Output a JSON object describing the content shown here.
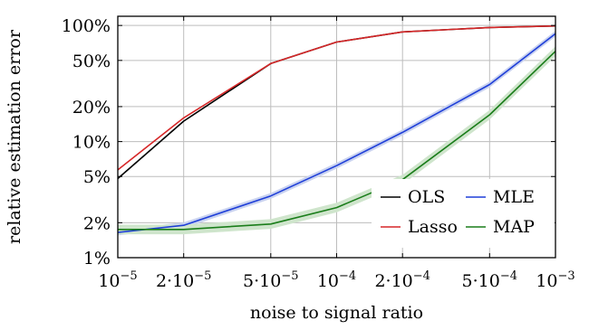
{
  "chart_data": {
    "type": "line",
    "title": "",
    "xlabel": "noise to signal ratio",
    "ylabel": "relative estimation error",
    "xscale": "log",
    "yscale": "log",
    "xlim": [
      1e-05,
      0.001
    ],
    "ylim": [
      0.01,
      1.2
    ],
    "grid": true,
    "legend_position": "bottom-right",
    "x": [
      1e-05,
      2e-05,
      5e-05,
      0.0001,
      0.0002,
      0.0005,
      0.001
    ],
    "x_ticks": [
      {
        "value": 1e-05,
        "base": "10",
        "exp": "−5"
      },
      {
        "value": 2e-05,
        "base": "2·10",
        "exp": "−5"
      },
      {
        "value": 5e-05,
        "base": "5·10",
        "exp": "−5"
      },
      {
        "value": 0.0001,
        "base": "10",
        "exp": "−4"
      },
      {
        "value": 0.0002,
        "base": "2·10",
        "exp": "−4"
      },
      {
        "value": 0.0005,
        "base": "5·10",
        "exp": "−4"
      },
      {
        "value": 0.001,
        "base": "10",
        "exp": "−3"
      }
    ],
    "y_ticks": [
      {
        "value": 0.01,
        "label": "1%"
      },
      {
        "value": 0.02,
        "label": "2%"
      },
      {
        "value": 0.05,
        "label": "5%"
      },
      {
        "value": 0.1,
        "label": "10%"
      },
      {
        "value": 0.2,
        "label": "20%"
      },
      {
        "value": 0.5,
        "label": "50%"
      },
      {
        "value": 1.0,
        "label": "100%"
      }
    ],
    "series": [
      {
        "name": "OLS",
        "color": "#000000",
        "values": [
          0.048,
          0.15,
          0.47,
          0.72,
          0.88,
          0.96,
          0.99
        ]
      },
      {
        "name": "Lasso",
        "color": "#d62728",
        "values": [
          0.057,
          0.16,
          0.47,
          0.72,
          0.88,
          0.96,
          0.99
        ]
      },
      {
        "name": "MLE",
        "color": "#1f3fd8",
        "values": [
          0.0165,
          0.019,
          0.034,
          0.062,
          0.12,
          0.31,
          0.85
        ],
        "band_color": "#c9d2f0",
        "band_width": 0.06
      },
      {
        "name": "MAP",
        "color": "#1a7d1a",
        "values": [
          0.0175,
          0.0175,
          0.0195,
          0.027,
          0.047,
          0.17,
          0.6
        ],
        "band_color": "#cfe5cc",
        "band_width": 0.1
      }
    ]
  }
}
